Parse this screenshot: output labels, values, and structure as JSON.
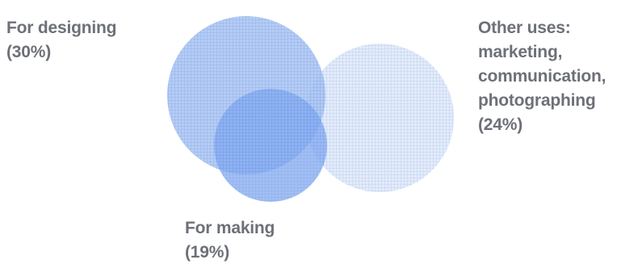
{
  "segments": {
    "designing": {
      "name": "For designing",
      "percent": "(30%)",
      "value": 30,
      "color": "#8fb2ef"
    },
    "making": {
      "name": "For making",
      "percent": "(19%)",
      "value": 19,
      "color": "#6f9df0"
    },
    "other": {
      "name_line1": "Other uses:",
      "name_line2": "marketing,",
      "name_line3": "communication,",
      "name_line4": "photographing",
      "percent": "(24%)",
      "value": 24,
      "color": "#c9d8f3"
    }
  }
}
